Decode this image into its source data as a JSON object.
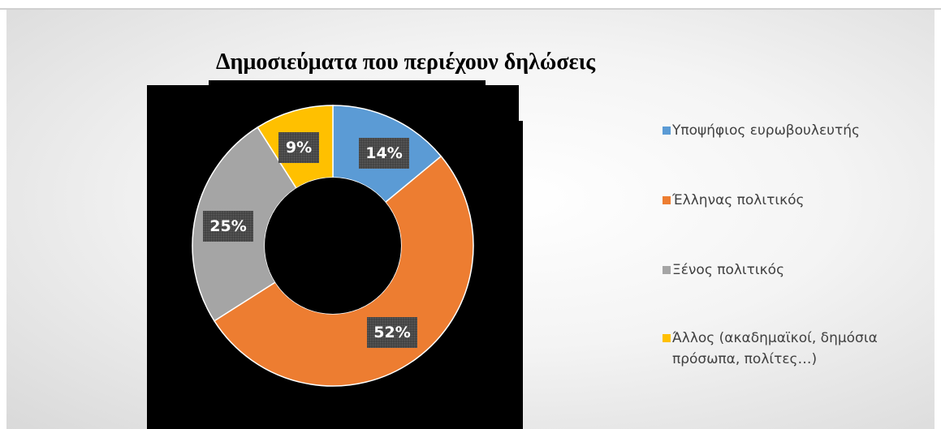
{
  "chart_data": {
    "type": "pie",
    "variant": "donut",
    "title": "Δημοσιεύματα που περιέχουν δηλώσεις",
    "legend_position": "right",
    "categories": [
      "Υποψήφιος ευρωβουλευτής",
      "Έλληνας πολιτικός",
      "Ξένος πολιτικός",
      "Άλλος (ακαδημαϊκοί, δημόσια πρόσωπα, πολίτες…)"
    ],
    "values": [
      14,
      52,
      25,
      9
    ],
    "labels": [
      "14%",
      "52%",
      "25%",
      "9%"
    ],
    "colors": [
      "#5B9BD5",
      "#ED7D31",
      "#A5A5A5",
      "#FFC000"
    ]
  }
}
